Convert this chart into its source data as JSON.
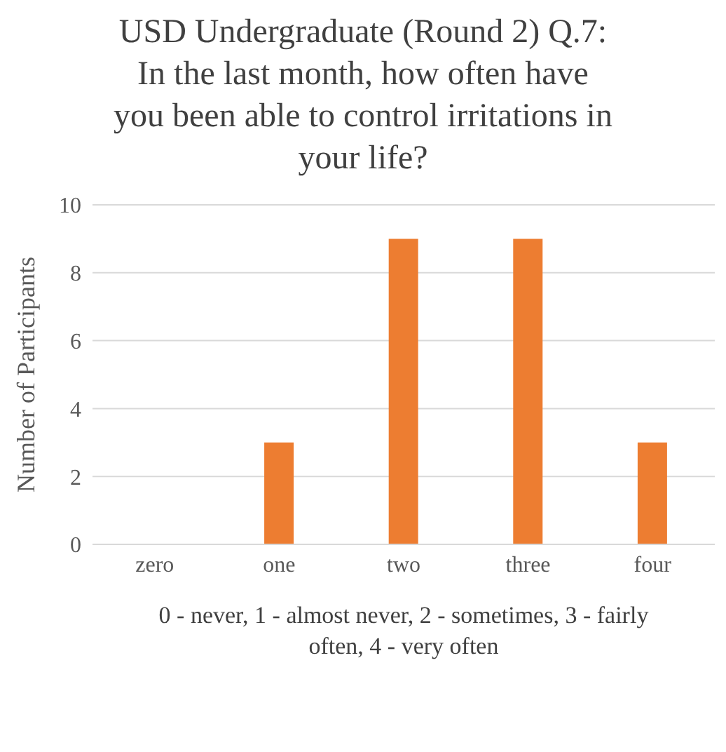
{
  "chart_data": {
    "type": "bar",
    "title": "USD Undergraduate (Round 2) Q.7: In the last month, how often have you been able to control irritations in your life?",
    "xlabel": "0 - never, 1 - almost never, 2 - sometimes, 3 - fairly often, 4 - very often",
    "ylabel": "Number of Participants",
    "categories": [
      "zero",
      "one",
      "two",
      "three",
      "four"
    ],
    "values": [
      0,
      3,
      9,
      9,
      3
    ],
    "color": "#ed7d31",
    "ylim": [
      0,
      10
    ],
    "yticks": [
      0,
      2,
      4,
      6,
      8,
      10
    ],
    "grid": "y",
    "legend": false
  }
}
